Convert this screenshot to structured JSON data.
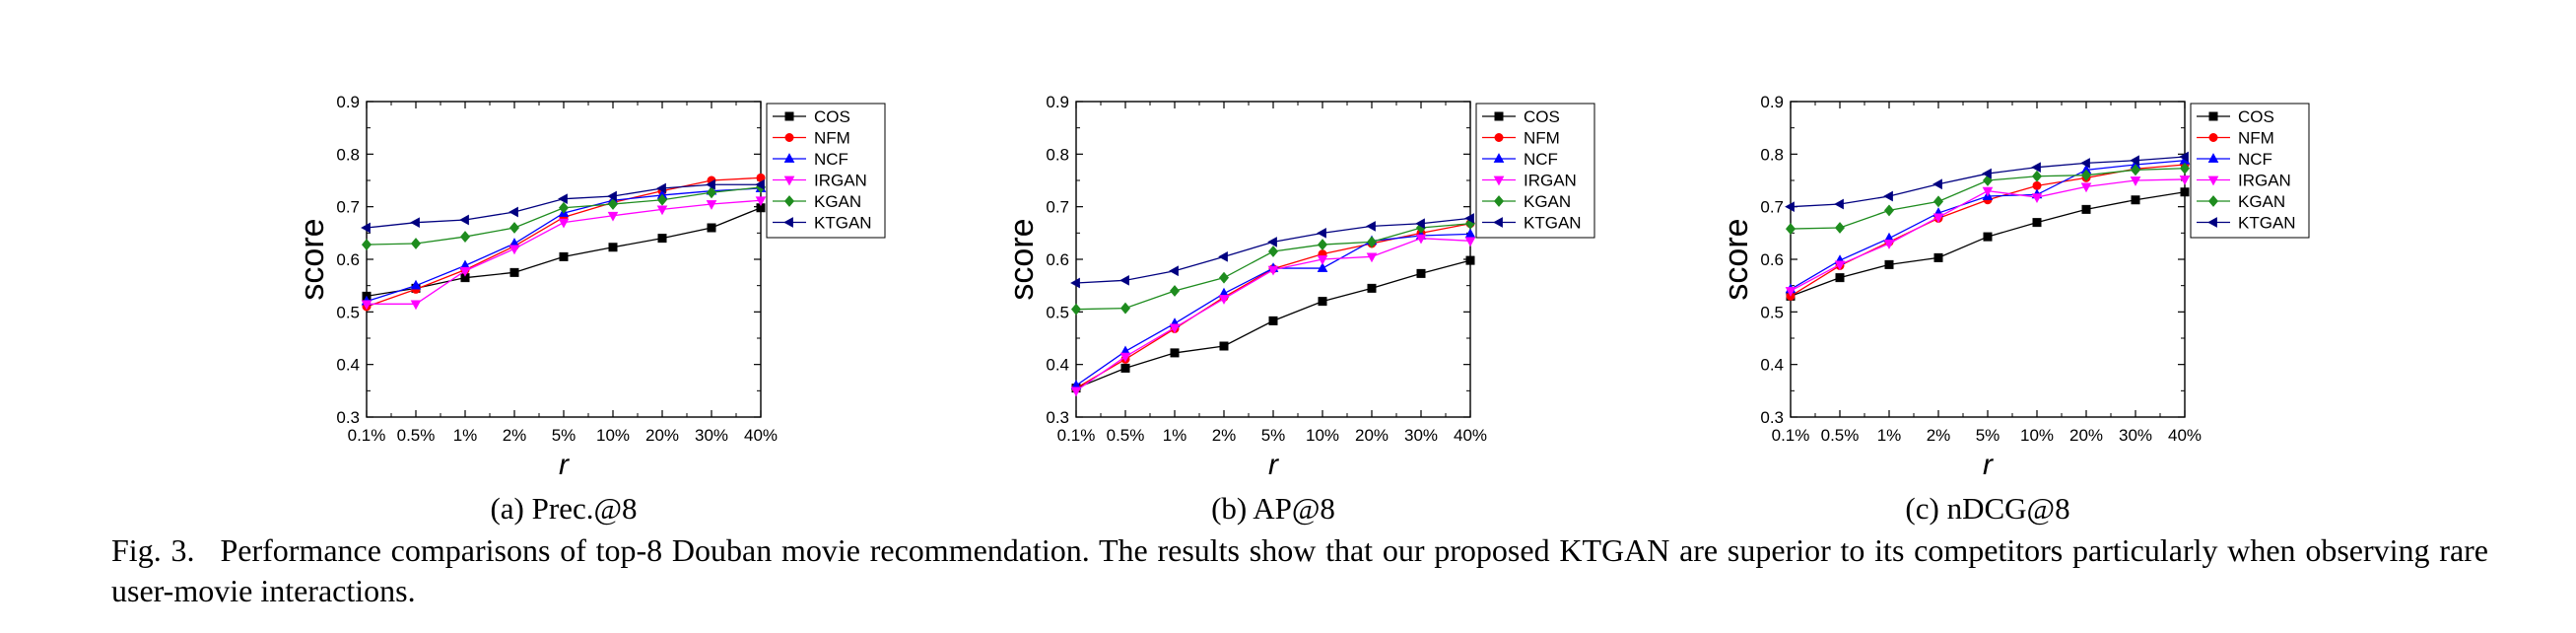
{
  "colors": {
    "COS": "#000000",
    "NFM": "#ff0000",
    "NCF": "#0000ff",
    "IRGAN": "#ff00ff",
    "KGAN": "#1e8c1e",
    "KTGAN": "#000080"
  },
  "chart_data": [
    {
      "type": "line",
      "id": "a",
      "subcaption": "(a)  Prec.@8",
      "xlabel": "r",
      "ylabel": "score",
      "ylim": [
        0.3,
        0.9
      ],
      "yticks": [
        "0.3",
        "0.4",
        "0.5",
        "0.6",
        "0.7",
        "0.8",
        "0.9"
      ],
      "categories": [
        "0.1%",
        "0.5%",
        "1%",
        "2%",
        "5%",
        "10%",
        "20%",
        "30%",
        "40%"
      ],
      "legend_position": "top-right",
      "series": [
        {
          "name": "COS",
          "marker": "square",
          "values": [
            0.53,
            0.545,
            0.565,
            0.575,
            0.605,
            0.623,
            0.64,
            0.66,
            0.698
          ]
        },
        {
          "name": "NFM",
          "marker": "circle",
          "values": [
            0.51,
            0.543,
            0.58,
            0.625,
            0.68,
            0.708,
            0.73,
            0.75,
            0.755
          ]
        },
        {
          "name": "NCF",
          "marker": "triangle-up",
          "values": [
            0.52,
            0.55,
            0.588,
            0.63,
            0.688,
            0.712,
            0.722,
            0.73,
            0.735
          ]
        },
        {
          "name": "IRGAN",
          "marker": "triangle-down",
          "values": [
            0.515,
            0.515,
            0.578,
            0.62,
            0.67,
            0.683,
            0.695,
            0.705,
            0.712
          ]
        },
        {
          "name": "KGAN",
          "marker": "diamond",
          "values": [
            0.628,
            0.63,
            0.643,
            0.66,
            0.698,
            0.705,
            0.713,
            0.727,
            0.737
          ]
        },
        {
          "name": "KTGAN",
          "marker": "triangle-left",
          "values": [
            0.66,
            0.67,
            0.675,
            0.69,
            0.715,
            0.72,
            0.735,
            0.742,
            0.742
          ]
        }
      ]
    },
    {
      "type": "line",
      "id": "b",
      "subcaption": "(b)  AP@8",
      "xlabel": "r",
      "ylabel": "score",
      "ylim": [
        0.3,
        0.9
      ],
      "yticks": [
        "0.3",
        "0.4",
        "0.5",
        "0.6",
        "0.7",
        "0.8",
        "0.9"
      ],
      "categories": [
        "0.1%",
        "0.5%",
        "1%",
        "2%",
        "5%",
        "10%",
        "20%",
        "30%",
        "40%"
      ],
      "legend_position": "top-right",
      "series": [
        {
          "name": "COS",
          "marker": "square",
          "values": [
            0.355,
            0.393,
            0.422,
            0.435,
            0.483,
            0.52,
            0.545,
            0.573,
            0.598
          ]
        },
        {
          "name": "NFM",
          "marker": "circle",
          "values": [
            0.355,
            0.41,
            0.468,
            0.528,
            0.582,
            0.61,
            0.63,
            0.65,
            0.668
          ]
        },
        {
          "name": "NCF",
          "marker": "triangle-up",
          "values": [
            0.36,
            0.425,
            0.478,
            0.535,
            0.583,
            0.583,
            0.635,
            0.645,
            0.648
          ]
        },
        {
          "name": "IRGAN",
          "marker": "triangle-down",
          "values": [
            0.35,
            0.415,
            0.47,
            0.525,
            0.58,
            0.6,
            0.605,
            0.64,
            0.635
          ]
        },
        {
          "name": "KGAN",
          "marker": "diamond",
          "values": [
            0.505,
            0.507,
            0.54,
            0.565,
            0.615,
            0.628,
            0.633,
            0.66,
            0.668
          ]
        },
        {
          "name": "KTGAN",
          "marker": "triangle-left",
          "values": [
            0.555,
            0.56,
            0.578,
            0.605,
            0.633,
            0.65,
            0.663,
            0.668,
            0.678
          ]
        }
      ]
    },
    {
      "type": "line",
      "id": "c",
      "subcaption": "(c)  nDCG@8",
      "xlabel": "r",
      "ylabel": "score",
      "ylim": [
        0.3,
        0.9
      ],
      "yticks": [
        "0.3",
        "0.4",
        "0.5",
        "0.6",
        "0.7",
        "0.8",
        "0.9"
      ],
      "categories": [
        "0.1%",
        "0.5%",
        "1%",
        "2%",
        "5%",
        "10%",
        "20%",
        "30%",
        "40%"
      ],
      "legend_position": "top-right",
      "series": [
        {
          "name": "COS",
          "marker": "square",
          "values": [
            0.53,
            0.565,
            0.59,
            0.603,
            0.643,
            0.67,
            0.695,
            0.713,
            0.728
          ]
        },
        {
          "name": "NFM",
          "marker": "circle",
          "values": [
            0.53,
            0.588,
            0.633,
            0.678,
            0.713,
            0.74,
            0.755,
            0.772,
            0.78
          ]
        },
        {
          "name": "NCF",
          "marker": "triangle-up",
          "values": [
            0.543,
            0.598,
            0.64,
            0.688,
            0.72,
            0.723,
            0.77,
            0.78,
            0.788
          ]
        },
        {
          "name": "IRGAN",
          "marker": "triangle-down",
          "values": [
            0.54,
            0.59,
            0.63,
            0.68,
            0.73,
            0.718,
            0.738,
            0.75,
            0.752
          ]
        },
        {
          "name": "KGAN",
          "marker": "diamond",
          "values": [
            0.658,
            0.66,
            0.693,
            0.71,
            0.75,
            0.758,
            0.76,
            0.77,
            0.773
          ]
        },
        {
          "name": "KTGAN",
          "marker": "triangle-left",
          "values": [
            0.7,
            0.705,
            0.72,
            0.743,
            0.763,
            0.775,
            0.783,
            0.788,
            0.795
          ]
        }
      ]
    }
  ],
  "caption": {
    "label": "Fig. 3.",
    "text": "Performance comparisons of top-8 Douban movie recommendation. The results show that our proposed KTGAN are superior to its competitors particularly when observing rare user-movie interactions."
  }
}
